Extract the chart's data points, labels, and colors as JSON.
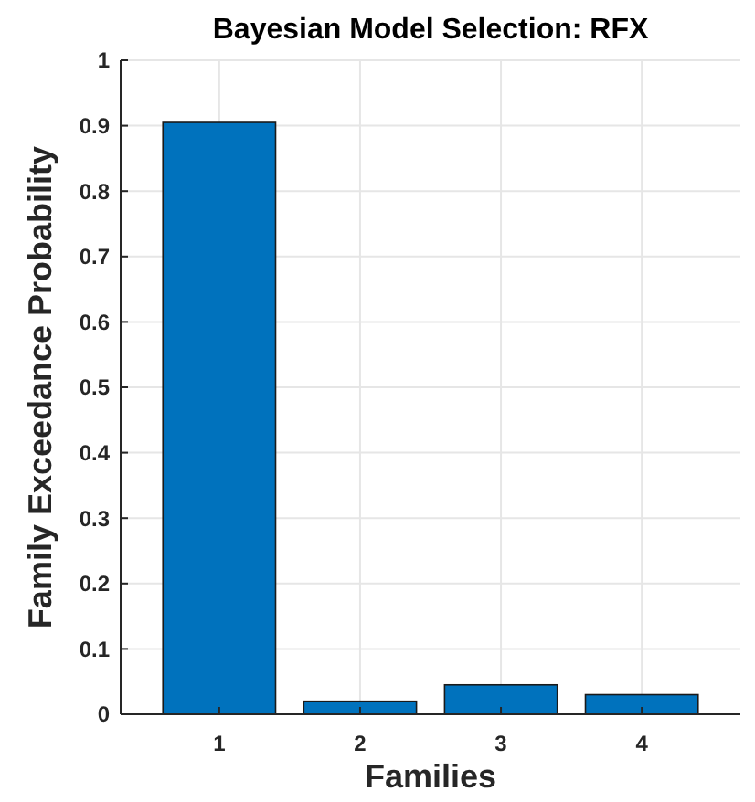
{
  "chart_data": {
    "type": "bar",
    "title": "Bayesian Model Selection: RFX",
    "xlabel": "Families",
    "ylabel": "Family Exceedance Probability",
    "categories": [
      "1",
      "2",
      "3",
      "4"
    ],
    "values": [
      0.905,
      0.02,
      0.045,
      0.03
    ],
    "color": "#0072bd",
    "ylim": [
      0,
      1
    ],
    "yticks": [
      0,
      0.1,
      0.2,
      0.3,
      0.4,
      0.5,
      0.6,
      0.7,
      0.8,
      0.9,
      1
    ],
    "grid": true
  }
}
